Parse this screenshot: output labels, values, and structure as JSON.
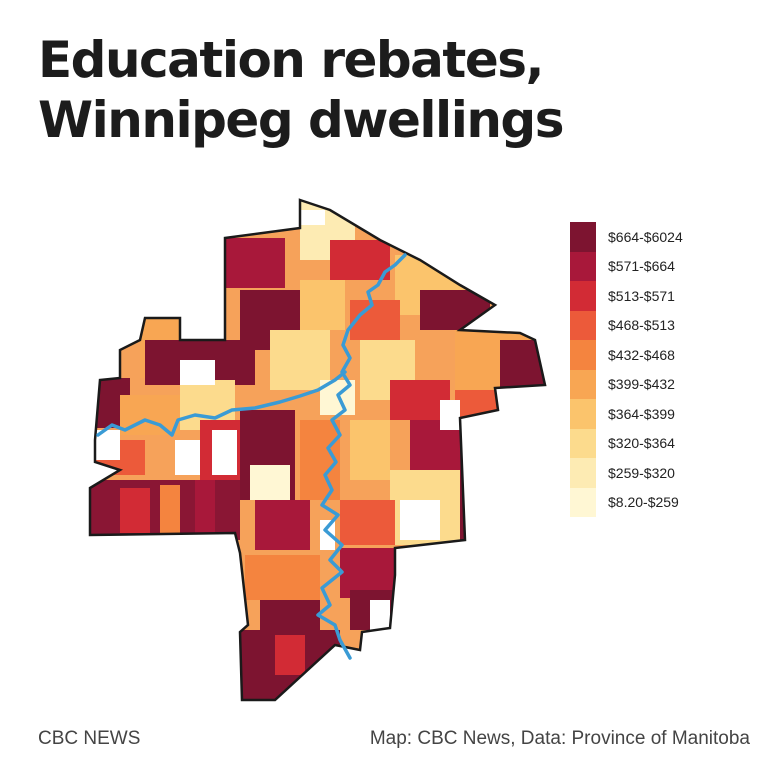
{
  "title": {
    "line1": "Education rebates,",
    "line2": "Winnipeg dwellings"
  },
  "legend": {
    "items": [
      {
        "label": "$664-$6024",
        "color": "#7d1430"
      },
      {
        "label": "$571-$664",
        "color": "#a8183a"
      },
      {
        "label": "$513-$571",
        "color": "#d22b35"
      },
      {
        "label": "$468-$513",
        "color": "#ec5a3a"
      },
      {
        "label": "$432-$468",
        "color": "#f4843f"
      },
      {
        "label": "$399-$432",
        "color": "#f8a653"
      },
      {
        "label": "$364-$399",
        "color": "#fbc46c"
      },
      {
        "label": "$320-$364",
        "color": "#fcdb8d"
      },
      {
        "label": "$259-$320",
        "color": "#fdebb3"
      },
      {
        "label": "$8.20-$259",
        "color": "#fff7d4"
      }
    ]
  },
  "map": {
    "river_color": "#3a9bd5",
    "outline_color": "#1a1a1a"
  },
  "footer": {
    "source_left": "CBC NEWS",
    "source_right": "Map: CBC News, Data: Province of Manitoba"
  }
}
